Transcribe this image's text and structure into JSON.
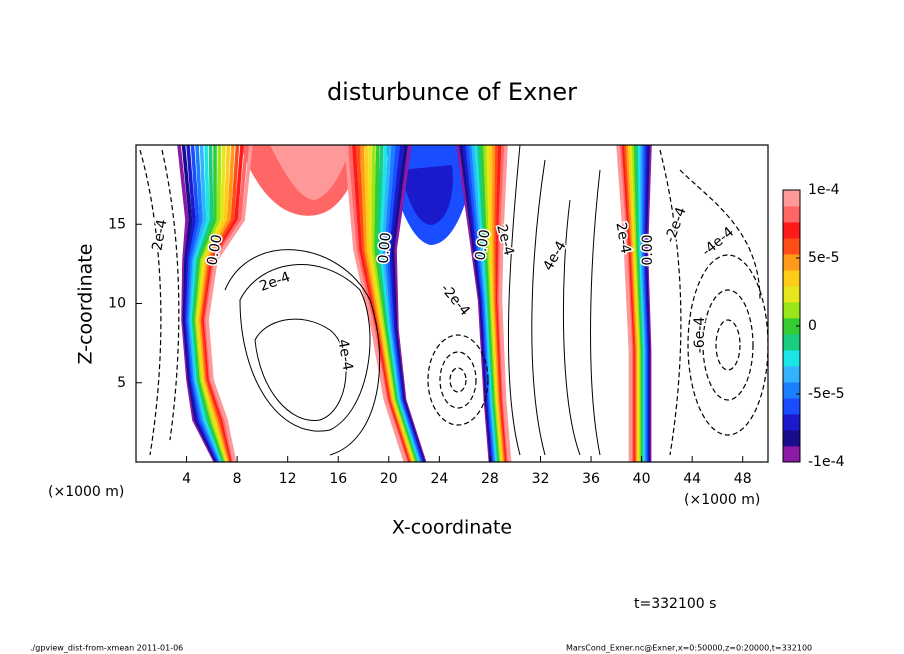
{
  "chart_data": {
    "type": "contour",
    "title": "disturbunce of Exner",
    "x_label": "X-coordinate",
    "y_label": "Z-coordinate",
    "x_unit": "(×1000 m)",
    "xlim": [
      0,
      50
    ],
    "xticks": [
      4,
      8,
      12,
      16,
      20,
      24,
      28,
      32,
      36,
      40,
      44,
      48
    ],
    "ylim": [
      0,
      20
    ],
    "yticks": [
      5,
      10,
      15
    ],
    "clim": [
      -0.0001,
      0.0001
    ],
    "cticks": [
      {
        "value": -0.0001,
        "label": "-1e-4"
      },
      {
        "value": -5e-05,
        "label": "-5e-5"
      },
      0,
      {
        "value": 5e-05,
        "label": "5e-5"
      },
      {
        "value": 0.0001,
        "label": "1e-4"
      }
    ],
    "colors": [
      "#8c1aa6",
      "#1a0d8c",
      "#1a1acc",
      "#1a4dff",
      "#1a80ff",
      "#33b3ff",
      "#1ae6e6",
      "#1acc80",
      "#33cc33",
      "#99e61a",
      "#e6e61a",
      "#ffcc1a",
      "#ff991a",
      "#ff4d1a",
      "#ff1a1a",
      "#ff6666",
      "#ff9999"
    ],
    "contour_labels": [
      "2e-4",
      "0.00",
      "2e-4",
      "4e-4",
      "0.00",
      "-2e-4",
      "0.00",
      "2e-4",
      "4e-4",
      "2e-4",
      "0.00",
      "-2e-4",
      "-4e-4",
      "-6e-4"
    ],
    "time_label": "t=332100 s",
    "footer_left": "./gpview_dist-from-xmean  2011-01-06",
    "footer_right": "MarsCond_Exner.nc@Exner,x=0:50000,z=0:20000,t=332100"
  }
}
